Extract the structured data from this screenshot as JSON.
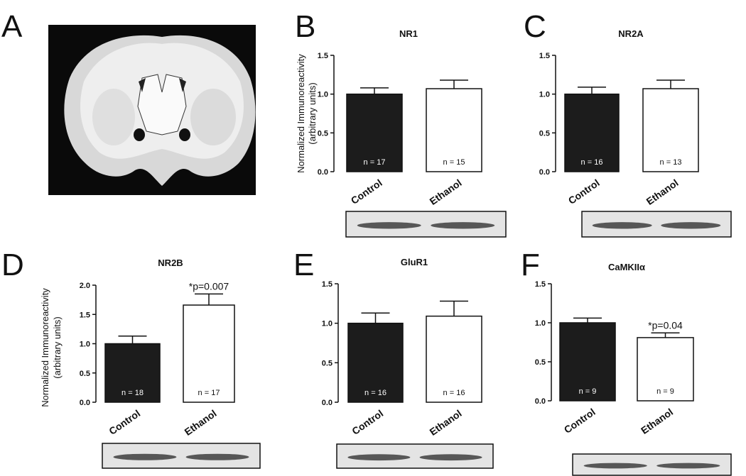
{
  "image_label": "A",
  "chart_data": [
    {
      "type": "bar",
      "panel": "B",
      "title": "NR1",
      "ylabel": [
        "Normalized Immunoreactivity",
        "(arbitrary units)"
      ],
      "categories": [
        "Control",
        "Ethanol"
      ],
      "values": [
        1.0,
        1.07
      ],
      "errors": [
        0.08,
        0.11
      ],
      "colors": [
        "#1c1c1c",
        "#ffffff"
      ],
      "n_labels": [
        "n = 17",
        "n = 15"
      ],
      "ylim": [
        0,
        1.5
      ],
      "yticks": [
        {
          "value": 0,
          "label": "0.0"
        },
        0.5,
        {
          "value": 1,
          "label": "1.0"
        },
        1.5
      ]
    },
    {
      "type": "bar",
      "panel": "C",
      "title": "NR2A",
      "categories": [
        "Control",
        "Ethanol"
      ],
      "values": [
        1.0,
        1.07
      ],
      "errors": [
        0.09,
        0.11
      ],
      "colors": [
        "#1c1c1c",
        "#ffffff"
      ],
      "n_labels": [
        "n = 16",
        "n = 13"
      ],
      "ylim": [
        0,
        1.5
      ],
      "yticks": [
        {
          "value": 0,
          "label": "0.0"
        },
        0.5,
        {
          "value": 1,
          "label": "1.0"
        },
        1.5
      ]
    },
    {
      "type": "bar",
      "panel": "D",
      "title": "NR2B",
      "ylabel": [
        "Normalized Immunoreactivity",
        "(arbitrary units)"
      ],
      "categories": [
        "Control",
        "Ethanol"
      ],
      "values": [
        1.0,
        1.66
      ],
      "errors": [
        0.13,
        0.19
      ],
      "colors": [
        "#1c1c1c",
        "#ffffff"
      ],
      "n_labels": [
        "n = 18",
        "n = 17"
      ],
      "annotation": "*p=0.007",
      "ylim": [
        0,
        2
      ],
      "yticks": [
        {
          "value": 0,
          "label": "0.0"
        },
        0.5,
        {
          "value": 1,
          "label": "1.0"
        },
        1.5,
        {
          "value": 2,
          "label": "2.0"
        }
      ]
    },
    {
      "type": "bar",
      "panel": "E",
      "title": "GluR1",
      "categories": [
        "Control",
        "Ethanol"
      ],
      "values": [
        1.0,
        1.09
      ],
      "errors": [
        0.13,
        0.19
      ],
      "colors": [
        "#1c1c1c",
        "#ffffff"
      ],
      "n_labels": [
        "n = 16",
        "n = 16"
      ],
      "ylim": [
        0,
        1.5
      ],
      "yticks": [
        {
          "value": 0,
          "label": "0.0"
        },
        0.5,
        {
          "value": 1,
          "label": "1.0"
        },
        1.5
      ]
    },
    {
      "type": "bar",
      "panel": "F",
      "title": "CaMKIIα",
      "categories": [
        "Control",
        "Ethanol"
      ],
      "values": [
        1.0,
        0.81
      ],
      "errors": [
        0.06,
        0.06
      ],
      "colors": [
        "#1c1c1c",
        "#ffffff"
      ],
      "n_labels": [
        "n = 9",
        "n = 9"
      ],
      "annotation": "*p=0.04",
      "ylim": [
        0,
        1.5
      ],
      "yticks": [
        {
          "value": 0,
          "label": "0.0"
        },
        0.5,
        {
          "value": 1,
          "label": "1.0"
        },
        1.5
      ]
    }
  ]
}
